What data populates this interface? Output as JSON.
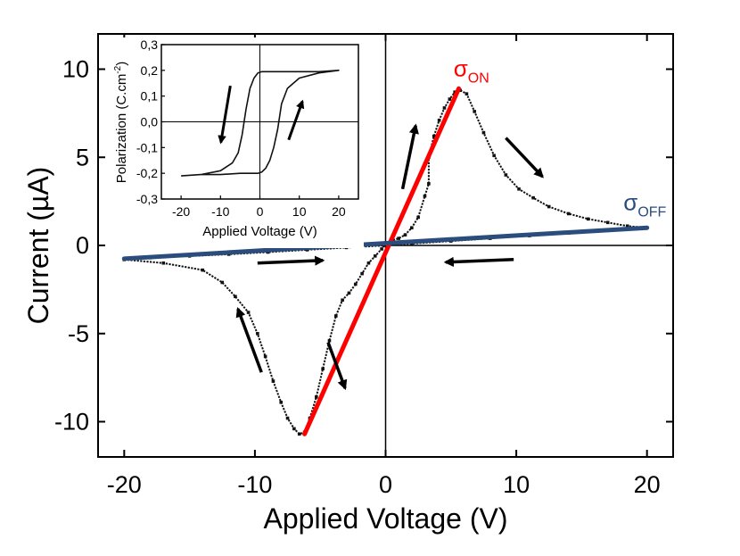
{
  "chart_data": [
    {
      "type": "scatter",
      "title": "",
      "xlabel": "Applied Voltage (V)",
      "ylabel": "Current (µA)",
      "xlim": [
        -22,
        22
      ],
      "ylim": [
        -12,
        12
      ],
      "xticks": [
        "-20",
        "-10",
        "0",
        "10",
        "20"
      ],
      "yticks": [
        "-10",
        "-5",
        "0",
        "5",
        "10"
      ],
      "grid": false,
      "series": [
        {
          "name": "",
          "color": "#111111",
          "x": [
            -20,
            -17,
            -14,
            -12.5,
            -11.5,
            -10.5,
            -9.8,
            -9.2,
            -8.6,
            -8,
            -7.5,
            -7,
            -6.6,
            -6.2,
            -5.8,
            -5.3,
            -4.8,
            -4.3,
            -3.8,
            -3.3,
            -2.8,
            -2.3,
            -1.8,
            -1.3,
            -0.8,
            -0.3,
            0,
            0.5,
            1,
            1.5,
            2,
            2.5,
            3,
            3.3,
            3.3,
            3.7,
            4.1,
            4.5,
            4.9,
            5.3,
            5.7,
            6.2,
            6.8,
            7.5,
            8.3,
            9.2,
            10.2,
            11.3,
            12.5,
            14,
            15.5,
            17,
            18.5,
            20,
            17,
            14,
            11,
            8,
            5,
            2,
            0,
            -3,
            -6,
            -9,
            -12,
            -15,
            -18,
            -20
          ],
          "y": [
            -0.8,
            -1.0,
            -1.4,
            -2.1,
            -2.9,
            -3.8,
            -5.0,
            -6.3,
            -7.7,
            -8.9,
            -9.8,
            -10.4,
            -10.7,
            -10.6,
            -9.8,
            -8.6,
            -7.0,
            -5.4,
            -4.0,
            -3.1,
            -2.7,
            -2.2,
            -1.6,
            -1.0,
            -0.6,
            -0.2,
            0.1,
            0.3,
            0.4,
            0.6,
            1.0,
            1.6,
            2.8,
            3.5,
            5.0,
            6.2,
            7.1,
            7.8,
            8.3,
            8.7,
            8.8,
            8.6,
            7.6,
            6.4,
            5.1,
            4.0,
            3.2,
            2.7,
            2.2,
            1.8,
            1.5,
            1.3,
            1.1,
            1.0,
            0.85,
            0.7,
            0.55,
            0.4,
            0.25,
            0.1,
            0.0,
            -0.12,
            -0.25,
            -0.38,
            -0.5,
            -0.6,
            -0.7,
            -0.8
          ]
        },
        {
          "name": "σON",
          "color": "#ff0000",
          "x": [
            -6.2,
            5.6
          ],
          "y": [
            -10.7,
            8.9
          ]
        },
        {
          "name": "σOFF",
          "color": "#2b4d7e",
          "x": [
            -20,
            20
          ],
          "y": [
            -0.75,
            1.0
          ]
        }
      ],
      "annotations": [
        {
          "text": "σ",
          "sub": "ON",
          "x": 5.2,
          "y": 9.6,
          "color": "#ff0000"
        },
        {
          "text": "σ",
          "sub": "OFF",
          "x": 18.2,
          "y": 2.0,
          "color": "#2b4d7e"
        }
      ],
      "arrows": [
        {
          "from": [
            -9.5,
            -7.2
          ],
          "to": [
            -11.3,
            -3.6
          ]
        },
        {
          "from": [
            -4.4,
            -5.5
          ],
          "to": [
            -3.1,
            -8.1
          ]
        },
        {
          "from": [
            1.3,
            3.2
          ],
          "to": [
            2.3,
            6.8
          ]
        },
        {
          "from": [
            9.2,
            6.1
          ],
          "to": [
            12.0,
            3.9
          ]
        },
        {
          "from": [
            -9.8,
            -1.0
          ],
          "to": [
            -4.8,
            -0.85
          ]
        },
        {
          "from": [
            9.8,
            -0.8
          ],
          "to": [
            4.6,
            -0.95
          ]
        }
      ]
    },
    {
      "type": "line",
      "title": "",
      "xlabel": "Applied Voltage (V)",
      "ylabel": "Polarization (C.cm",
      "ylabel_sup": "-2",
      "ylabel_end": ")",
      "xlim": [
        -25,
        25
      ],
      "ylim": [
        -0.3,
        0.3
      ],
      "xticks": [
        "-20",
        "-10",
        "0",
        "10",
        "20"
      ],
      "yticks": [
        "-0,3",
        "-0,2",
        "-0,1",
        "0,0",
        "0,1",
        "0,2",
        "0,3"
      ],
      "grid": false,
      "series": [
        {
          "name": "",
          "color": "#111111",
          "x": [
            -20,
            -15,
            -10,
            -7,
            -5.5,
            -4.5,
            -3.5,
            -2.5,
            -1.5,
            -0.5,
            0.5,
            2,
            5,
            10,
            15,
            20,
            15,
            10,
            7,
            5.5,
            4.5,
            3.5,
            2.5,
            1.5,
            0.5,
            -0.5,
            -2,
            -5,
            -10,
            -15,
            -20
          ],
          "y": [
            -0.21,
            -0.205,
            -0.19,
            -0.16,
            -0.12,
            -0.05,
            0.05,
            0.13,
            0.17,
            0.19,
            0.195,
            0.195,
            0.195,
            0.195,
            0.195,
            0.2,
            0.19,
            0.17,
            0.13,
            0.07,
            -0.03,
            -0.1,
            -0.15,
            -0.18,
            -0.195,
            -0.2,
            -0.2,
            -0.2,
            -0.205,
            -0.205,
            -0.21
          ]
        }
      ],
      "arrows": [
        {
          "from": [
            -7.5,
            0.14
          ],
          "to": [
            -9.9,
            -0.08
          ]
        },
        {
          "from": [
            7.3,
            -0.07
          ],
          "to": [
            10.8,
            0.08
          ]
        }
      ]
    }
  ]
}
